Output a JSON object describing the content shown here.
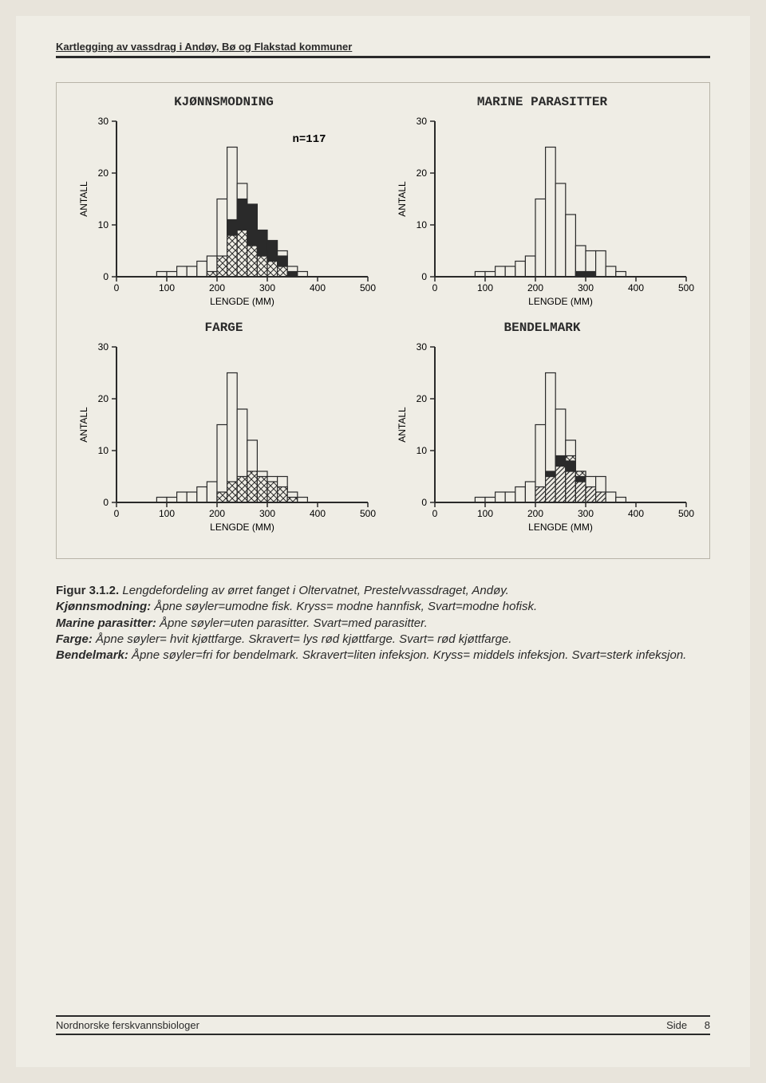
{
  "header": "Kartlegging av vassdrag i Andøy, Bø og Flakstad kommuner",
  "n_label": "n=117",
  "axes": {
    "ylabel": "ANTALL",
    "xlabel": "LENGDE (MM)",
    "ylim": [
      0,
      30
    ],
    "yticks": [
      0,
      10,
      20,
      30
    ],
    "xlim": [
      0,
      500
    ],
    "xticks": [
      0,
      100,
      200,
      300,
      400,
      500
    ],
    "tick_fontsize": 12
  },
  "colors": {
    "bg": "#efede5",
    "axis": "#2a2a2a",
    "bar_stroke": "#2a2a2a",
    "open_fill": "#efede5",
    "black_fill": "#2a2a2a",
    "hatch_fill": "#2a2a2a"
  },
  "bin_width_mm": 20,
  "charts": [
    {
      "title": "KJØNNSMODNING",
      "series": [
        {
          "name": "open",
          "fill": "open",
          "values": {
            "80": 1,
            "100": 1,
            "120": 2,
            "140": 2,
            "160": 3,
            "180": 4,
            "200": 15,
            "220": 25,
            "240": 18,
            "260": 12,
            "280": 6,
            "300": 5,
            "320": 5,
            "340": 2,
            "360": 1
          }
        },
        {
          "name": "cross",
          "fill": "cross",
          "values": {
            "180": 1,
            "200": 4,
            "220": 8,
            "240": 9,
            "260": 6,
            "280": 4,
            "300": 3,
            "320": 2
          }
        },
        {
          "name": "black",
          "fill": "black",
          "values": {
            "220": 3,
            "240": 6,
            "260": 8,
            "280": 5,
            "300": 4,
            "320": 2,
            "340": 1
          }
        }
      ]
    },
    {
      "title": "MARINE PARASITTER",
      "series": [
        {
          "name": "open",
          "fill": "open",
          "values": {
            "80": 1,
            "100": 1,
            "120": 2,
            "140": 2,
            "160": 3,
            "180": 4,
            "200": 15,
            "220": 25,
            "240": 18,
            "260": 12,
            "280": 6,
            "300": 5,
            "320": 5,
            "340": 2,
            "360": 1
          }
        },
        {
          "name": "black",
          "fill": "black",
          "values": {
            "280": 1,
            "300": 1
          }
        }
      ]
    },
    {
      "title": "FARGE",
      "series": [
        {
          "name": "open",
          "fill": "open",
          "values": {
            "80": 1,
            "100": 1,
            "120": 2,
            "140": 2,
            "160": 3,
            "180": 4,
            "200": 15,
            "220": 25,
            "240": 18,
            "260": 12,
            "280": 6,
            "300": 5,
            "320": 5,
            "340": 2,
            "360": 1
          }
        },
        {
          "name": "cross",
          "fill": "cross",
          "values": {
            "200": 2,
            "220": 4,
            "240": 5,
            "260": 6,
            "280": 5,
            "300": 4,
            "320": 3,
            "340": 1
          }
        },
        {
          "name": "hatch",
          "fill": "hatch",
          "values": {}
        }
      ]
    },
    {
      "title": "BENDELMARK",
      "series": [
        {
          "name": "open",
          "fill": "open",
          "values": {
            "80": 1,
            "100": 1,
            "120": 2,
            "140": 2,
            "160": 3,
            "180": 4,
            "200": 15,
            "220": 25,
            "240": 18,
            "260": 12,
            "280": 6,
            "300": 5,
            "320": 5,
            "340": 2,
            "360": 1
          }
        },
        {
          "name": "hatch",
          "fill": "hatch",
          "values": {
            "200": 3,
            "220": 5,
            "240": 7,
            "260": 6,
            "280": 4,
            "300": 3,
            "320": 2
          }
        },
        {
          "name": "black",
          "fill": "black",
          "values": {
            "220": 1,
            "240": 2,
            "260": 2,
            "280": 1
          }
        },
        {
          "name": "cross",
          "fill": "cross",
          "values": {
            "260": 1,
            "280": 1
          }
        }
      ]
    }
  ],
  "caption": {
    "fig_label": "Figur 3.1.2.",
    "main": "Lengdefordeling av ørret fanget i Oltervatnet, Prestelvvassdraget, Andøy.",
    "lines": [
      {
        "label": "Kjønnsmodning:",
        "text": "Åpne søyler=umodne fisk. Kryss= modne hannfisk, Svart=modne hofisk."
      },
      {
        "label": "Marine parasitter:",
        "text": "Åpne søyler=uten parasitter. Svart=med parasitter."
      },
      {
        "label": "Farge:",
        "text": "Åpne søyler= hvit kjøttfarge. Skravert= lys rød kjøttfarge. Svart= rød kjøttfarge."
      },
      {
        "label": "Bendelmark:",
        "text": "Åpne søyler=fri for bendelmark. Skravert=liten infeksjon. Kryss= middels infeksjon. Svart=sterk infeksjon."
      }
    ]
  },
  "footer": {
    "left": "Nordnorske ferskvannsbiologer",
    "right_label": "Side",
    "page_no": "8"
  }
}
